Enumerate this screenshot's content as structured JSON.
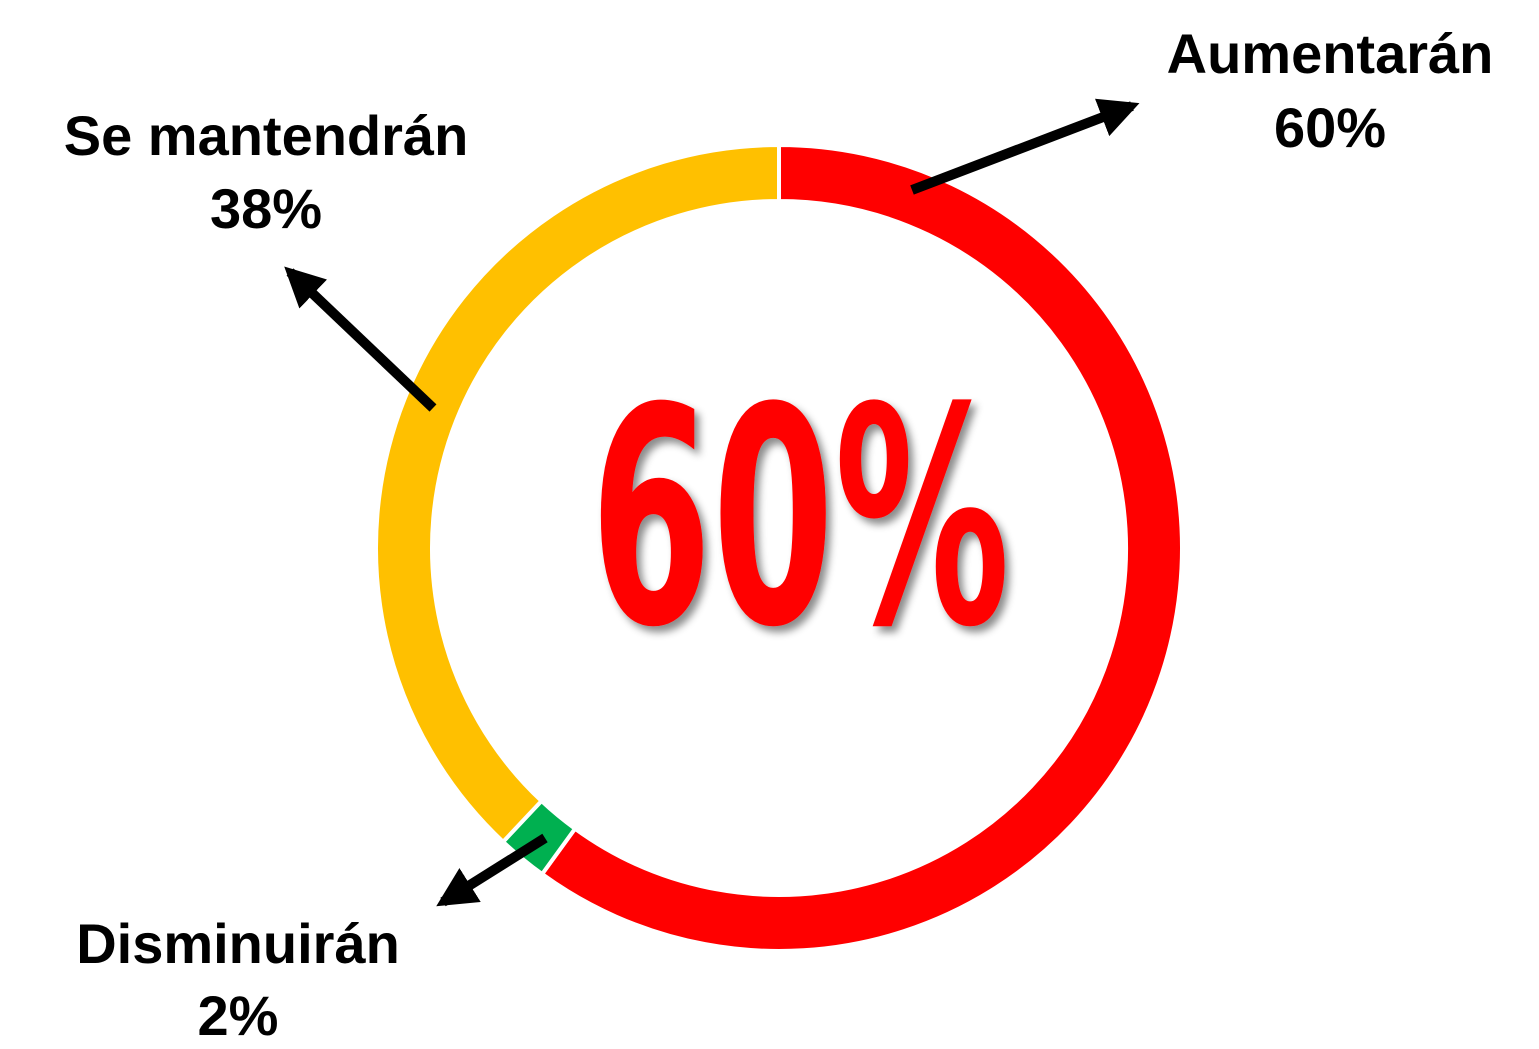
{
  "chart_data": {
    "type": "donut",
    "categories": [
      "Aumentarán",
      "Disminuirán",
      "Se mantendrán"
    ],
    "values": [
      60,
      2,
      38
    ],
    "value_labels": [
      "60%",
      "2%",
      "38%"
    ],
    "colors": [
      "#ff0000",
      "#00b050",
      "#ffc000"
    ],
    "center_label": "60%"
  }
}
